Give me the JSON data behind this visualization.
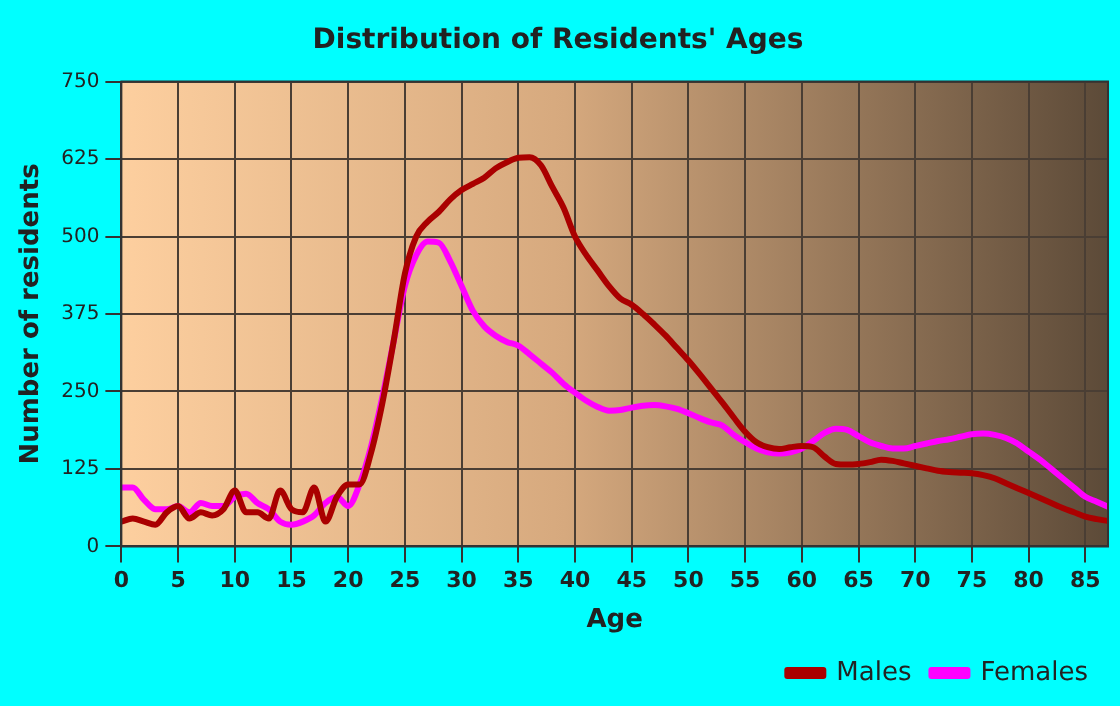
{
  "chart_data": {
    "type": "line",
    "title": "Distribution of Residents' Ages",
    "xlabel": "Age",
    "ylabel": "Number of residents",
    "x": [
      0,
      1,
      2,
      3,
      4,
      5,
      6,
      7,
      8,
      9,
      10,
      11,
      12,
      13,
      14,
      15,
      16,
      17,
      18,
      19,
      20,
      21,
      22,
      23,
      24,
      25,
      26,
      27,
      28,
      29,
      30,
      31,
      32,
      33,
      34,
      35,
      36,
      37,
      38,
      39,
      40,
      41,
      42,
      43,
      44,
      45,
      46,
      47,
      48,
      49,
      50,
      51,
      52,
      53,
      54,
      55,
      56,
      57,
      58,
      59,
      60,
      61,
      62,
      63,
      64,
      65,
      66,
      67,
      68,
      69,
      70,
      71,
      72,
      73,
      74,
      75,
      76,
      77,
      78,
      79,
      80,
      81,
      82,
      83,
      84,
      85,
      86,
      87
    ],
    "series": [
      {
        "name": "Males",
        "color": "#aa0000",
        "values": [
          40,
          45,
          40,
          35,
          55,
          65,
          45,
          55,
          50,
          60,
          90,
          55,
          55,
          45,
          90,
          60,
          55,
          95,
          40,
          80,
          100,
          100,
          150,
          230,
          330,
          440,
          500,
          524,
          540,
          560,
          575,
          585,
          595,
          610,
          620,
          627,
          628,
          615,
          580,
          546,
          500,
          470,
          445,
          420,
          400,
          390,
          375,
          358,
          340,
          320,
          300,
          278,
          255,
          232,
          208,
          185,
          168,
          160,
          157,
          160,
          162,
          160,
          145,
          133,
          132,
          133,
          136,
          140,
          138,
          134,
          130,
          126,
          122,
          120,
          119,
          118,
          115,
          110,
          102,
          94,
          86,
          78,
          70,
          62,
          55,
          48,
          44,
          41
        ]
      },
      {
        "name": "Females",
        "color": "#ff00ff",
        "values": [
          95,
          95,
          75,
          60,
          60,
          65,
          55,
          70,
          65,
          65,
          80,
          85,
          70,
          60,
          40,
          35,
          40,
          50,
          70,
          80,
          65,
          100,
          160,
          240,
          330,
          420,
          470,
          492,
          490,
          460,
          420,
          380,
          355,
          340,
          330,
          324,
          310,
          295,
          280,
          262,
          248,
          235,
          225,
          219,
          220,
          224,
          227,
          228,
          226,
          222,
          215,
          207,
          200,
          195,
          180,
          168,
          158,
          152,
          150,
          152,
          158,
          170,
          183,
          190,
          188,
          178,
          168,
          162,
          158,
          158,
          162,
          166,
          170,
          173,
          177,
          181,
          182,
          180,
          175,
          166,
          153,
          140,
          125,
          110,
          95,
          80,
          72,
          64
        ]
      }
    ],
    "xlim": [
      0,
      87
    ],
    "xticks": [
      0,
      5,
      10,
      15,
      20,
      25,
      30,
      35,
      40,
      45,
      50,
      55,
      60,
      65,
      70,
      75,
      80,
      85
    ],
    "ylim": [
      0,
      750
    ],
    "yticks": [
      0,
      125,
      250,
      375,
      500,
      625,
      750
    ],
    "grid": true,
    "legend": "bottom",
    "marker": "none",
    "line_style": "solid"
  }
}
